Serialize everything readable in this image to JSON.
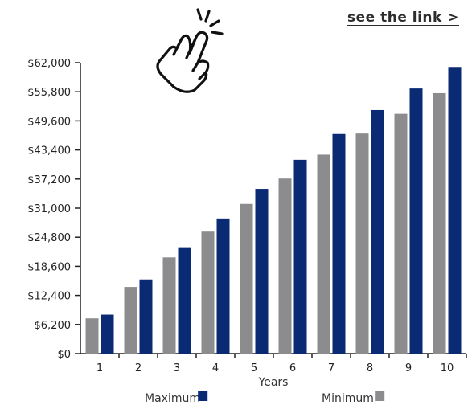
{
  "header": {
    "link_label": "see the link >"
  },
  "icons": {
    "tap": "tap-hand-icon"
  },
  "chart_data": {
    "type": "bar",
    "title": "",
    "xlabel": "Years",
    "ylabel": "",
    "categories": [
      "1",
      "2",
      "3",
      "4",
      "5",
      "6",
      "7",
      "8",
      "9",
      "10"
    ],
    "series": [
      {
        "name": "Minimum",
        "color": "#8c8c8e",
        "values": [
          7500,
          14200,
          20500,
          26000,
          31900,
          37300,
          42400,
          46900,
          51100,
          55500
        ]
      },
      {
        "name": "Maximum",
        "color": "#0a2a73",
        "values": [
          8300,
          15800,
          22500,
          28800,
          35100,
          41300,
          46800,
          51900,
          56500,
          61100
        ]
      }
    ],
    "ylim": [
      0,
      62000
    ],
    "yticks": [
      "$0",
      "$6,200",
      "$12,400",
      "$18,600",
      "$24,800",
      "$31,000",
      "$37,200",
      "$43,400",
      "$49,600",
      "$55,800",
      "$62,000"
    ],
    "legend": [
      {
        "label": "Maximum",
        "color": "#0a2a73"
      },
      {
        "label": "Minimum",
        "color": "#8c8c8e"
      }
    ],
    "legend_position": "bottom",
    "grid": false
  }
}
